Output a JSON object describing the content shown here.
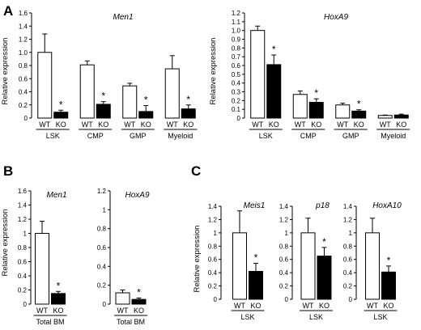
{
  "panel_labels": [
    "A",
    "B",
    "C"
  ],
  "common": {
    "wt_label": "WT",
    "ko_label": "KO",
    "sig_mark": "*",
    "wt_fill": "#ffffff",
    "ko_fill": "#000000"
  },
  "chart_data": [
    {
      "id": "A1",
      "type": "bar",
      "gene": "Men1",
      "ylabel": "Relative expression",
      "ylim": [
        0,
        1.6
      ],
      "yticks": [
        "0",
        "0.2",
        "0.4",
        "0.6",
        "0.8",
        "1.0",
        "1.2",
        "1.4",
        "1.6"
      ],
      "groups": [
        {
          "label": "LSK",
          "wt": 1.0,
          "wt_err": 0.28,
          "ko": 0.09,
          "ko_err": 0.03,
          "sig": true
        },
        {
          "label": "CMP",
          "wt": 0.81,
          "wt_err": 0.06,
          "ko": 0.21,
          "ko_err": 0.04,
          "sig": true
        },
        {
          "label": "GMP",
          "wt": 0.49,
          "wt_err": 0.04,
          "ko": 0.1,
          "ko_err": 0.09,
          "sig": true
        },
        {
          "label": "Myeloid",
          "wt": 0.75,
          "wt_err": 0.2,
          "ko": 0.14,
          "ko_err": 0.06,
          "sig": true
        }
      ]
    },
    {
      "id": "A2",
      "type": "bar",
      "gene": "HoxA9",
      "ylabel": "Relative expression",
      "ylim": [
        0,
        1.2
      ],
      "yticks": [
        "0",
        "0.1",
        "0.2",
        "0.3",
        "0.4",
        "0.5",
        "0.6",
        "0.7",
        "0.8",
        "0.9",
        "1.0",
        "1.1",
        "1.2"
      ],
      "groups": [
        {
          "label": "LSK",
          "wt": 1.0,
          "wt_err": 0.05,
          "ko": 0.61,
          "ko_err": 0.11,
          "sig": true
        },
        {
          "label": "CMP",
          "wt": 0.27,
          "wt_err": 0.04,
          "ko": 0.18,
          "ko_err": 0.04,
          "sig": true
        },
        {
          "label": "GMP",
          "wt": 0.15,
          "wt_err": 0.02,
          "ko": 0.08,
          "ko_err": 0.015,
          "sig": true
        },
        {
          "label": "Myeloid",
          "wt": 0.03,
          "wt_err": 0.005,
          "ko": 0.035,
          "ko_err": 0.01,
          "sig": false
        }
      ]
    },
    {
      "id": "B1",
      "type": "bar",
      "gene": "Men1",
      "ylabel": "Relative expression",
      "ylim": [
        0,
        1.6
      ],
      "yticks": [
        "0",
        "0.2",
        "0.4",
        "0.6",
        "0.8",
        "1",
        "1.2",
        "1.4",
        "1.6"
      ],
      "groups": [
        {
          "label": "Total BM",
          "wt": 1.0,
          "wt_err": 0.17,
          "ko": 0.15,
          "ko_err": 0.03,
          "sig": true
        }
      ]
    },
    {
      "id": "B2",
      "type": "bar",
      "gene": "HoxA9",
      "ylabel": "",
      "ylim": [
        0,
        1.2
      ],
      "yticks": [
        "0",
        "0.2",
        "0.4",
        "0.6",
        "0.8",
        "1",
        "1.2"
      ],
      "groups": [
        {
          "label": "Total BM",
          "wt": 0.12,
          "wt_err": 0.03,
          "ko": 0.05,
          "ko_err": 0.015,
          "sig": true
        }
      ]
    },
    {
      "id": "C1",
      "type": "bar",
      "gene": "Meis1",
      "ylabel": "Relative expression",
      "ylim": [
        0,
        1.4
      ],
      "yticks": [
        "0",
        "0.2",
        "0.4",
        "0.6",
        "0.8",
        "1",
        "1.2",
        "1.4"
      ],
      "groups": [
        {
          "label": "LSK",
          "wt": 1.0,
          "wt_err": 0.33,
          "ko": 0.42,
          "ko_err": 0.12,
          "sig": true
        }
      ]
    },
    {
      "id": "C2",
      "type": "bar",
      "gene": "p18",
      "ylabel": "",
      "ylim": [
        0,
        1.4
      ],
      "yticks": [
        "0",
        "0.2",
        "0.4",
        "0.6",
        "0.8",
        "1",
        "1.2",
        "1.4"
      ],
      "groups": [
        {
          "label": "LSK",
          "wt": 1.0,
          "wt_err": 0.22,
          "ko": 0.65,
          "ko_err": 0.13,
          "sig": true
        }
      ]
    },
    {
      "id": "C3",
      "type": "bar",
      "gene": "HoxA10",
      "ylabel": "",
      "ylim": [
        0,
        1.4
      ],
      "yticks": [
        "0",
        "0.2",
        "0.4",
        "0.6",
        "0.8",
        "1",
        "1.2",
        "1.4"
      ],
      "groups": [
        {
          "label": "LSK",
          "wt": 1.0,
          "wt_err": 0.22,
          "ko": 0.41,
          "ko_err": 0.09,
          "sig": true
        }
      ]
    }
  ]
}
